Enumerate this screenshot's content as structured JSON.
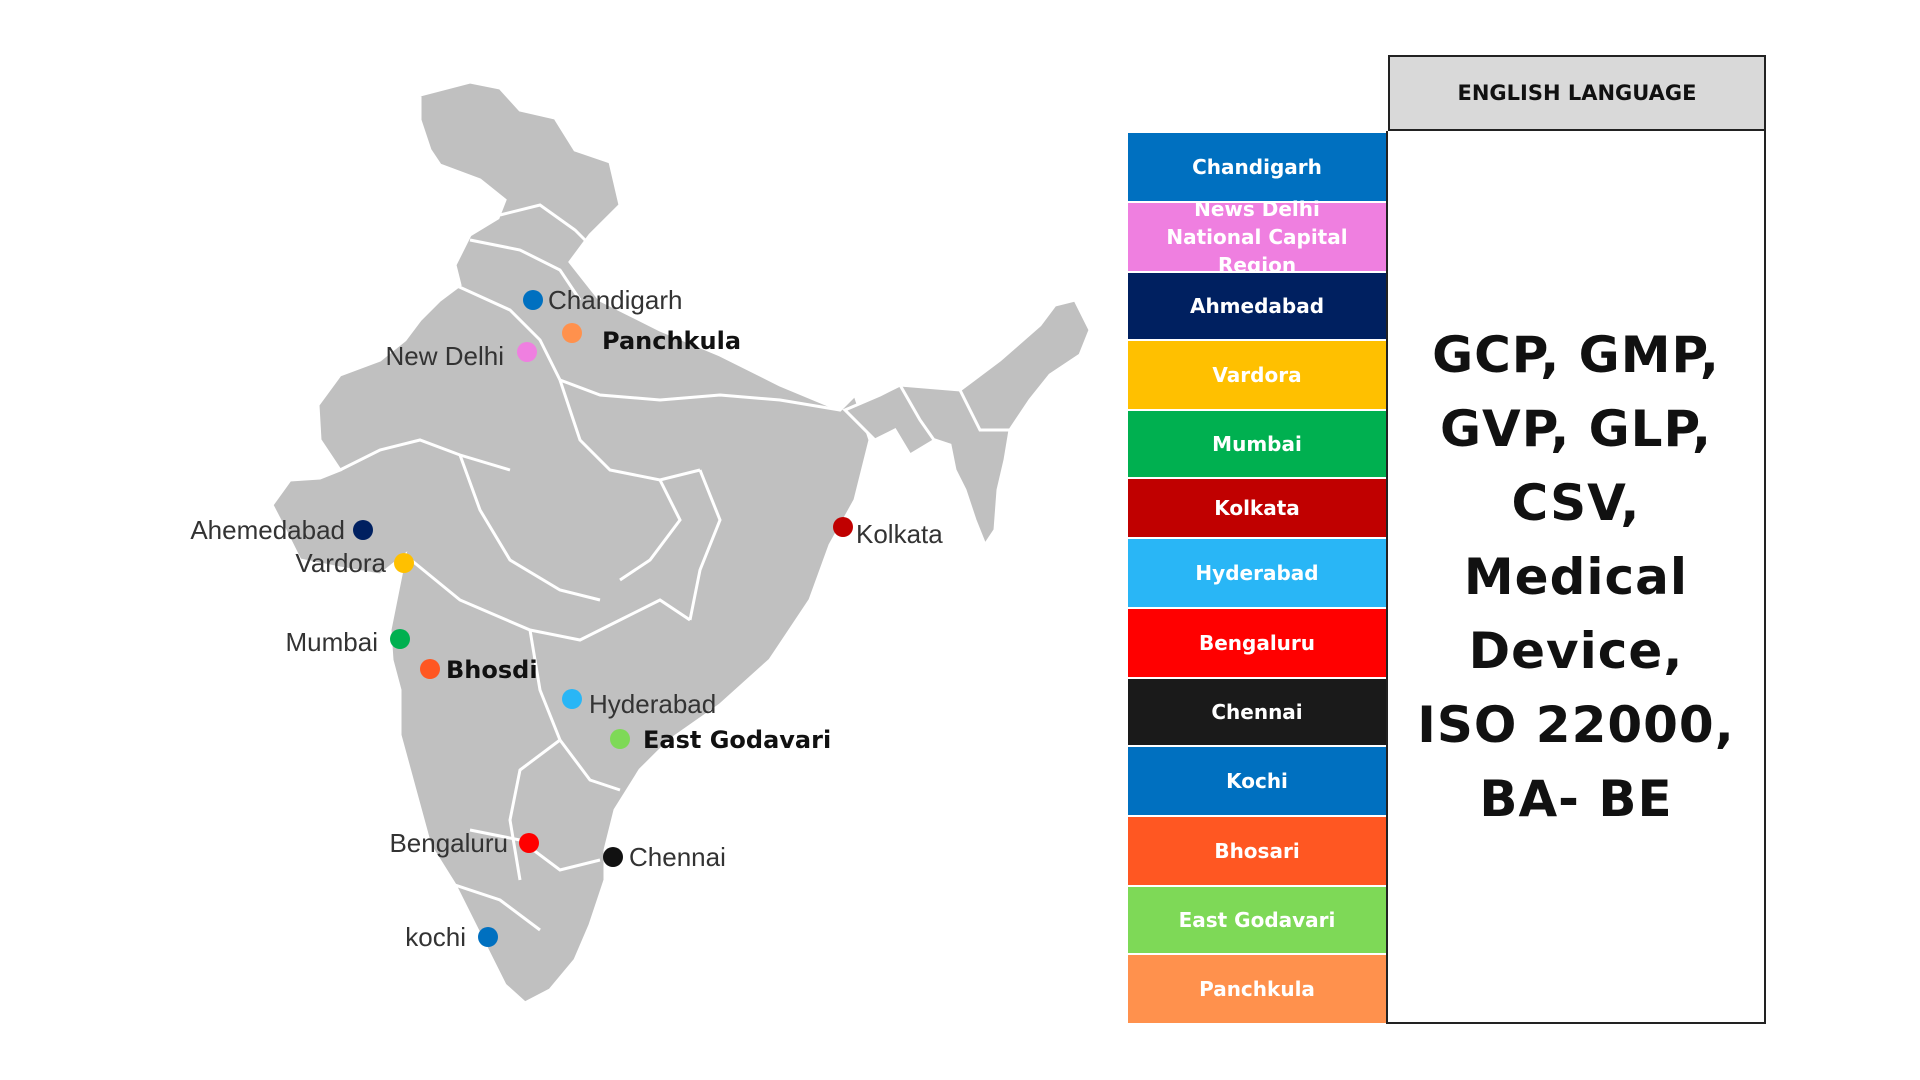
{
  "map": {
    "country_color": "#c0c0c0",
    "border_color": "#ffffff",
    "cities": [
      {
        "label": "Chandigarh",
        "color": "#0070c0",
        "bold": false
      },
      {
        "label": "Panchkula",
        "color": "#ff914d",
        "bold": true
      },
      {
        "label": "New Delhi",
        "color": "#ef7fe0",
        "bold": false
      },
      {
        "label": "Ahemedabad",
        "color": "#002060",
        "bold": false
      },
      {
        "label": "Vardora",
        "color": "#ffc000",
        "bold": false
      },
      {
        "label": "Kolkata",
        "color": "#c00000",
        "bold": false
      },
      {
        "label": "Mumbai",
        "color": "#00b050",
        "bold": false
      },
      {
        "label": "Bhosdi",
        "color": "#ff5722",
        "bold": true
      },
      {
        "label": "Hyderabad",
        "color": "#29b6f6",
        "bold": false
      },
      {
        "label": "East Godavari",
        "color": "#7ed957",
        "bold": true
      },
      {
        "label": "Bengaluru",
        "color": "#ff0000",
        "bold": false
      },
      {
        "label": "Chennai",
        "color": "#111111",
        "bold": false
      },
      {
        "label": "kochi",
        "color": "#0070c0",
        "bold": false
      }
    ]
  },
  "legend": [
    {
      "label": "Chandigarh",
      "color": "#0070c0"
    },
    {
      "label": "News Delhi National Capital Region",
      "color": "#ef7fe0"
    },
    {
      "label": "Ahmedabad",
      "color": "#002060"
    },
    {
      "label": "Vardora",
      "color": "#ffc000"
    },
    {
      "label": "Mumbai",
      "color": "#00b050"
    },
    {
      "label": "Kolkata",
      "color": "#c00000"
    },
    {
      "label": "Hyderabad",
      "color": "#29b6f6"
    },
    {
      "label": "Bengaluru",
      "color": "#ff0000"
    },
    {
      "label": "Chennai",
      "color": "#1a1a1a"
    },
    {
      "label": "Kochi",
      "color": "#0070c0"
    },
    {
      "label": "Bhosari",
      "color": "#ff5722"
    },
    {
      "label": "East Godavari",
      "color": "#7ed957"
    },
    {
      "label": "Panchkula",
      "color": "#ff914d"
    }
  ],
  "table": {
    "header": "ENGLISH LANGUAGE",
    "standards_lines": [
      "GCP, GMP,",
      "GVP, GLP,",
      "CSV,",
      "Medical",
      "Device,",
      "ISO 22000,",
      "BA- BE"
    ]
  }
}
